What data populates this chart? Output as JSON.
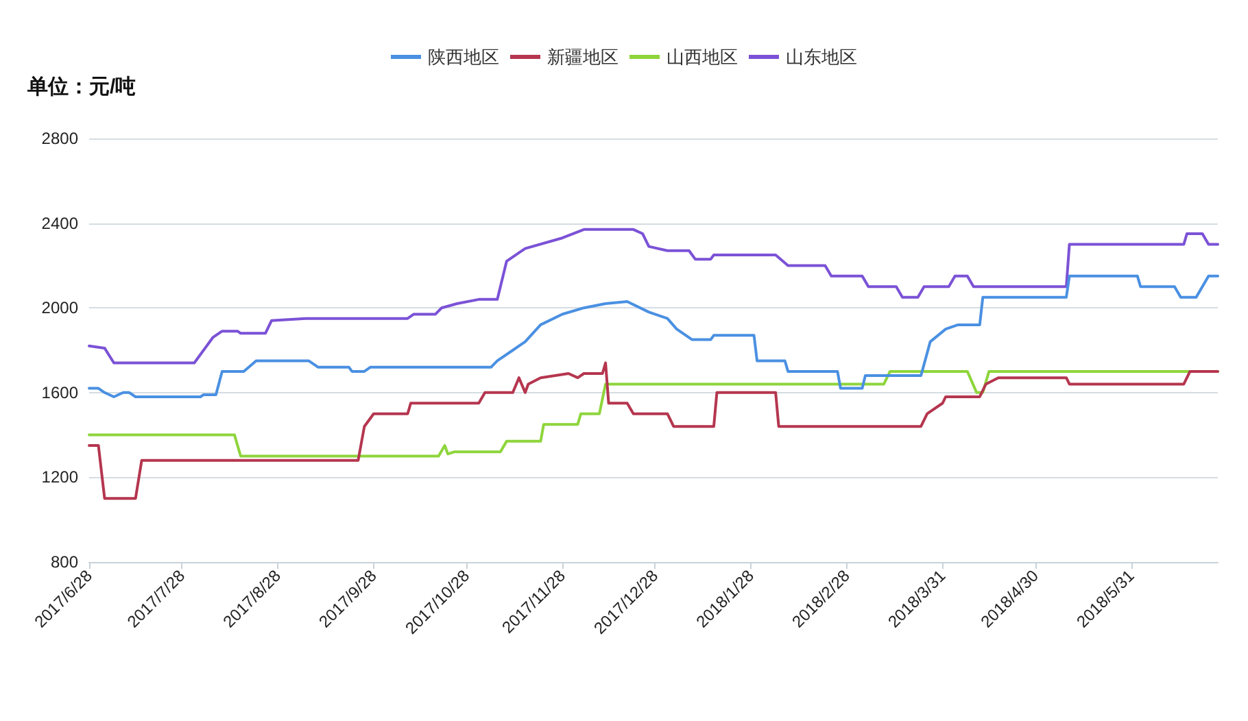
{
  "chart_data": {
    "type": "line",
    "ylabel": "单位：元/吨",
    "xlim": [
      "2017-06-28",
      "2018-06-28"
    ],
    "xticks": [
      {
        "value": "2017-06-28",
        "label": "2017/6/28"
      },
      {
        "value": "2017-07-28",
        "label": "2017/7/28"
      },
      {
        "value": "2017-08-28",
        "label": "2017/8/28"
      },
      {
        "value": "2017-09-28",
        "label": "2017/9/28"
      },
      {
        "value": "2017-10-28",
        "label": "2017/10/28"
      },
      {
        "value": "2017-11-28",
        "label": "2017/11/28"
      },
      {
        "value": "2017-12-28",
        "label": "2017/12/28"
      },
      {
        "value": "2018-01-28",
        "label": "2018/1/28"
      },
      {
        "value": "2018-02-28",
        "label": "2018/2/28"
      },
      {
        "value": "2018-03-31",
        "label": "2018/3/31"
      },
      {
        "value": "2018-04-30",
        "label": "2018/4/30"
      },
      {
        "value": "2018-05-31",
        "label": "2018/5/31"
      }
    ],
    "ylim": [
      800,
      2800
    ],
    "yticks": [
      800,
      1200,
      1600,
      2000,
      2400,
      2800
    ],
    "grid": "y",
    "legend": "top",
    "marker": "none",
    "line_style": "solid",
    "series": [
      {
        "name": "陕西地区",
        "color": "#4a90e2",
        "x": [
          "2017-06-28",
          "2017-07-01",
          "2017-07-03",
          "2017-07-06",
          "2017-07-09",
          "2017-07-11",
          "2017-07-13",
          "2017-08-03",
          "2017-08-04",
          "2017-08-08",
          "2017-08-10",
          "2017-08-17",
          "2017-08-21",
          "2017-09-07",
          "2017-09-10",
          "2017-09-20",
          "2017-09-21",
          "2017-09-25",
          "2017-09-27",
          "2017-11-05",
          "2017-11-07",
          "2017-11-12",
          "2017-11-16",
          "2017-11-21",
          "2017-11-28",
          "2017-12-05",
          "2017-12-12",
          "2017-12-19",
          "2017-12-26",
          "2018-01-01",
          "2018-01-04",
          "2018-01-09",
          "2018-01-15",
          "2018-01-16",
          "2018-01-29",
          "2018-01-30",
          "2018-02-08",
          "2018-02-09",
          "2018-02-25",
          "2018-02-26",
          "2018-03-05",
          "2018-03-06",
          "2018-03-24",
          "2018-03-27",
          "2018-04-01",
          "2018-04-05",
          "2018-04-12",
          "2018-04-13",
          "2018-05-10",
          "2018-05-11",
          "2018-06-02",
          "2018-06-03",
          "2018-06-14",
          "2018-06-16",
          "2018-06-21",
          "2018-06-23",
          "2018-06-25",
          "2018-06-28"
        ],
        "values": [
          1620,
          1620,
          1600,
          1580,
          1600,
          1600,
          1580,
          1580,
          1590,
          1590,
          1700,
          1700,
          1750,
          1750,
          1720,
          1720,
          1700,
          1700,
          1720,
          1720,
          1750,
          1800,
          1840,
          1920,
          1970,
          2000,
          2020,
          2030,
          1980,
          1950,
          1900,
          1850,
          1850,
          1870,
          1870,
          1750,
          1750,
          1700,
          1700,
          1620,
          1620,
          1680,
          1680,
          1840,
          1900,
          1920,
          1920,
          2050,
          2050,
          2150,
          2150,
          2100,
          2100,
          2050,
          2050,
          2100,
          2150,
          2150
        ]
      },
      {
        "name": "新疆地区",
        "color": "#b5364f",
        "x": [
          "2017-06-28",
          "2017-07-01",
          "2017-07-03",
          "2017-07-13",
          "2017-07-15",
          "2017-09-23",
          "2017-09-25",
          "2017-09-28",
          "2017-10-09",
          "2017-10-10",
          "2017-11-01",
          "2017-11-03",
          "2017-11-12",
          "2017-11-14",
          "2017-11-16",
          "2017-11-17",
          "2017-11-21",
          "2017-11-30",
          "2017-12-03",
          "2017-12-05",
          "2017-12-11",
          "2017-12-12",
          "2017-12-13",
          "2017-12-19",
          "2017-12-21",
          "2018-01-01",
          "2018-01-03",
          "2018-01-16",
          "2018-01-17",
          "2018-02-05",
          "2018-02-06",
          "2018-03-24",
          "2018-03-26",
          "2018-03-31",
          "2018-04-01",
          "2018-04-12",
          "2018-04-14",
          "2018-04-18",
          "2018-05-10",
          "2018-05-11",
          "2018-06-17",
          "2018-06-19",
          "2018-06-28"
        ],
        "values": [
          1350,
          1350,
          1100,
          1100,
          1280,
          1280,
          1440,
          1500,
          1500,
          1550,
          1550,
          1600,
          1600,
          1670,
          1600,
          1640,
          1670,
          1690,
          1670,
          1690,
          1690,
          1740,
          1550,
          1550,
          1500,
          1500,
          1440,
          1440,
          1600,
          1600,
          1440,
          1440,
          1500,
          1550,
          1580,
          1580,
          1640,
          1670,
          1670,
          1640,
          1640,
          1700,
          1700
        ]
      },
      {
        "name": "山西地区",
        "color": "#8ed53c",
        "x": [
          "2017-06-28",
          "2017-08-14",
          "2017-08-16",
          "2017-10-19",
          "2017-10-21",
          "2017-10-22",
          "2017-10-24",
          "2017-11-08",
          "2017-11-10",
          "2017-11-21",
          "2017-11-22",
          "2017-12-03",
          "2017-12-04",
          "2017-12-10",
          "2017-12-12",
          "2018-03-12",
          "2018-03-14",
          "2018-04-08",
          "2018-04-11",
          "2018-04-13",
          "2018-04-15",
          "2018-06-28"
        ],
        "values": [
          1400,
          1400,
          1300,
          1300,
          1350,
          1310,
          1320,
          1320,
          1370,
          1370,
          1450,
          1450,
          1500,
          1500,
          1640,
          1640,
          1700,
          1700,
          1600,
          1600,
          1700,
          1700
        ]
      },
      {
        "name": "山东地区",
        "color": "#7b52d6",
        "x": [
          "2017-06-28",
          "2017-07-03",
          "2017-07-06",
          "2017-08-01",
          "2017-08-07",
          "2017-08-10",
          "2017-08-15",
          "2017-08-16",
          "2017-08-24",
          "2017-08-26",
          "2017-09-06",
          "2017-10-09",
          "2017-10-11",
          "2017-10-18",
          "2017-10-20",
          "2017-10-25",
          "2017-11-01",
          "2017-11-07",
          "2017-11-10",
          "2017-11-16",
          "2017-11-28",
          "2017-12-05",
          "2017-12-21",
          "2017-12-24",
          "2017-12-26",
          "2018-01-01",
          "2018-01-08",
          "2018-01-10",
          "2018-01-15",
          "2018-01-16",
          "2018-02-05",
          "2018-02-09",
          "2018-02-21",
          "2018-02-23",
          "2018-03-05",
          "2018-03-07",
          "2018-03-16",
          "2018-03-18",
          "2018-03-23",
          "2018-03-25",
          "2018-04-02",
          "2018-04-04",
          "2018-04-08",
          "2018-04-10",
          "2018-05-10",
          "2018-05-11",
          "2018-06-17",
          "2018-06-18",
          "2018-06-23",
          "2018-06-25",
          "2018-06-28"
        ],
        "values": [
          1820,
          1810,
          1740,
          1740,
          1860,
          1890,
          1890,
          1880,
          1880,
          1940,
          1950,
          1950,
          1970,
          1970,
          2000,
          2020,
          2040,
          2040,
          2220,
          2280,
          2330,
          2370,
          2370,
          2350,
          2290,
          2270,
          2270,
          2230,
          2230,
          2250,
          2250,
          2200,
          2200,
          2150,
          2150,
          2100,
          2100,
          2050,
          2050,
          2100,
          2100,
          2150,
          2150,
          2100,
          2100,
          2300,
          2300,
          2350,
          2350,
          2300,
          2300
        ]
      }
    ]
  }
}
